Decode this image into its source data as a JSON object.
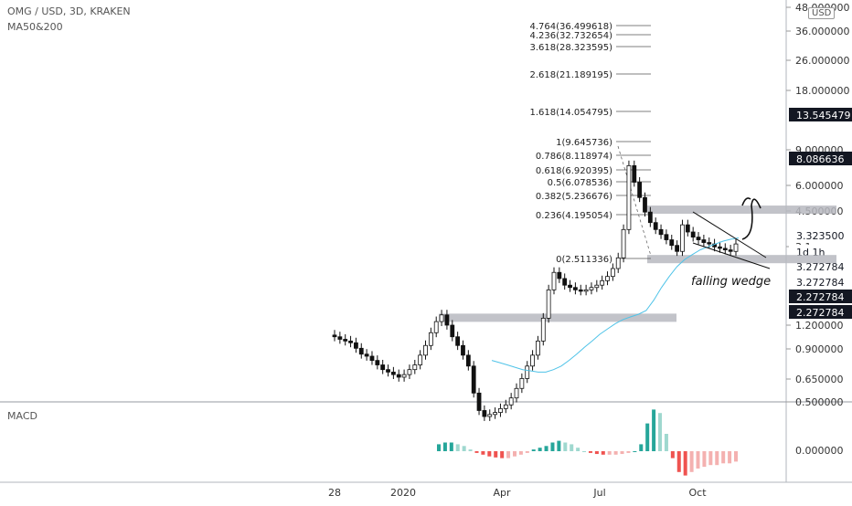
{
  "header": {
    "symbol_line": "OMG / USD, 3D, KRAKEN",
    "indicator": "MA50&200",
    "currency_badge": "USD"
  },
  "macd_label": "MACD",
  "annotation": "falling wedge",
  "price_axis": {
    "ticks": [
      "48.000000",
      "36.000000",
      "26.000000",
      "18.000000",
      "9.000000",
      "6.000000",
      "4.500000",
      "3.1",
      "1.200000",
      "0.900000",
      "0.650000",
      "0.500000"
    ],
    "macd_tick": "0.000000"
  },
  "price_tags": [
    {
      "label": "13.545479",
      "style": "dark"
    },
    {
      "label": "8.086636",
      "style": "dark"
    },
    {
      "label": "3.323500",
      "style": "light"
    },
    {
      "label": "1d 1h",
      "style": "light"
    },
    {
      "label": "3.272784",
      "style": "light"
    },
    {
      "label": "3.272784",
      "style": "light"
    },
    {
      "label": "2.272784",
      "style": "dark"
    },
    {
      "label": "2.272784",
      "style": "dark"
    }
  ],
  "time_axis": [
    "28",
    "2020",
    "Apr",
    "Jul",
    "Oct"
  ],
  "fib_levels": [
    {
      "label": "4.764(36.499618)"
    },
    {
      "label": "4.236(32.732654)"
    },
    {
      "label": "3.618(28.323595)"
    },
    {
      "label": "2.618(21.189195)"
    },
    {
      "label": "1.618(14.054795)"
    },
    {
      "label": "1(9.645736)"
    },
    {
      "label": "0.786(8.118974)"
    },
    {
      "label": "0.618(6.920395)"
    },
    {
      "label": "0.5(6.078536)"
    },
    {
      "label": "0.382(5.236676)"
    },
    {
      "label": "0.236(4.195054)"
    },
    {
      "label": "0(2.511336)"
    }
  ],
  "chart_data": {
    "type": "candlestick",
    "pair": "OMG / USD",
    "interval": "3D",
    "exchange": "KRAKEN",
    "scale": "log",
    "support_zones": [
      4.5,
      2.55,
      1.3
    ],
    "price_close": [
      1.05,
      1.02,
      1.0,
      0.98,
      0.92,
      0.86,
      0.84,
      0.8,
      0.76,
      0.72,
      0.7,
      0.68,
      0.66,
      0.68,
      0.72,
      0.76,
      0.85,
      0.95,
      1.1,
      1.25,
      1.35,
      1.2,
      1.05,
      0.95,
      0.85,
      0.75,
      0.55,
      0.45,
      0.42,
      0.43,
      0.44,
      0.46,
      0.48,
      0.52,
      0.58,
      0.65,
      0.75,
      0.85,
      1.0,
      1.3,
      1.8,
      2.2,
      2.05,
      1.9,
      1.85,
      1.8,
      1.78,
      1.8,
      1.85,
      1.9,
      2.0,
      2.1,
      2.3,
      2.6,
      3.6,
      7.5,
      6.2,
      5.2,
      4.4,
      3.9,
      3.6,
      3.4,
      3.2,
      3.0,
      2.8,
      3.8,
      3.5,
      3.3,
      3.2,
      3.1,
      3.05,
      2.95,
      2.9,
      2.85,
      2.8,
      3.05
    ],
    "ma50": [
      0.8,
      0.78,
      0.76,
      0.74,
      0.72,
      0.71,
      0.7,
      0.7,
      0.72,
      0.75,
      0.8,
      0.86,
      0.93,
      1.0,
      1.08,
      1.15,
      1.22,
      1.28,
      1.32,
      1.36,
      1.42,
      1.6,
      1.85,
      2.1,
      2.35,
      2.55,
      2.7,
      2.85,
      2.95,
      3.05,
      3.15,
      3.22,
      3.27
    ],
    "macd_hist": [
      0.2,
      0.25,
      0.25,
      0.2,
      0.15,
      0.05,
      -0.05,
      -0.1,
      -0.15,
      -0.18,
      -0.2,
      -0.2,
      -0.15,
      -0.1,
      -0.05,
      0.05,
      0.1,
      0.15,
      0.25,
      0.3,
      0.25,
      0.2,
      0.1,
      0.0,
      -0.05,
      -0.08,
      -0.1,
      -0.1,
      -0.1,
      -0.08,
      -0.05,
      0.0,
      0.2,
      0.8,
      1.2,
      1.1,
      0.5,
      -0.2,
      -0.6,
      -0.7,
      -0.6,
      -0.5,
      -0.45,
      -0.4,
      -0.4,
      -0.35,
      -0.35,
      -0.3
    ]
  }
}
